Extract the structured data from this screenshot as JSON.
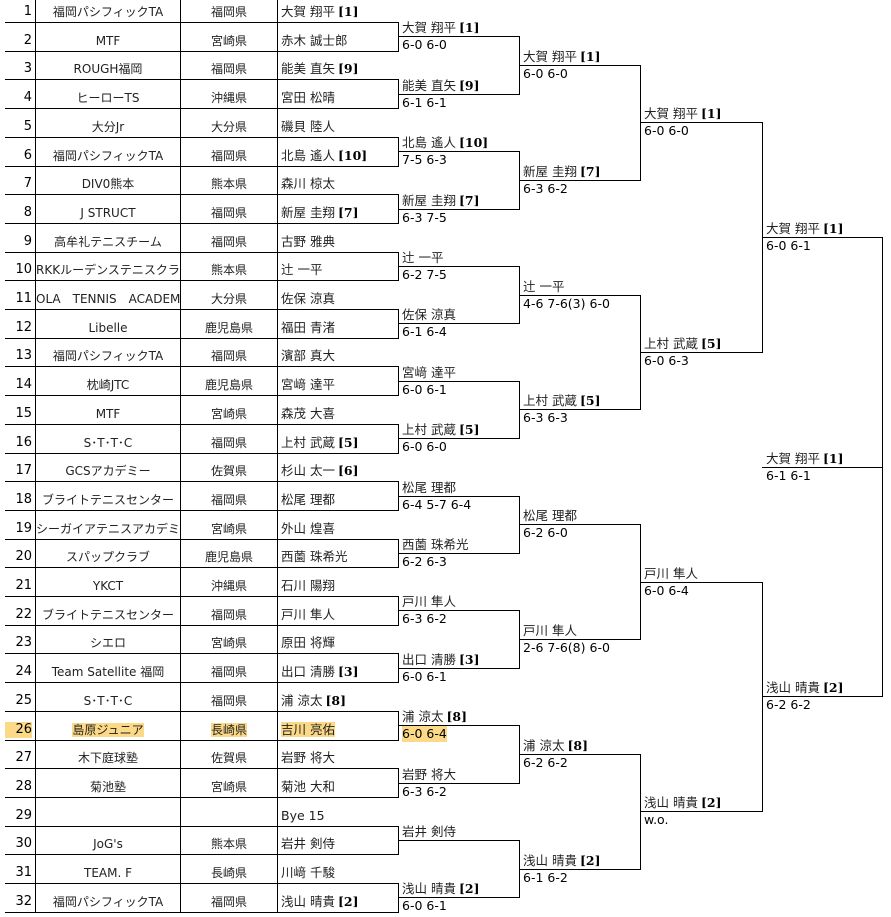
{
  "highlight_color": "#fcd987",
  "entries": [
    {
      "no": "1",
      "club": "福岡パシフィックTA",
      "pref": "福岡県",
      "name": "大賀 翔平",
      "seed": "[1]"
    },
    {
      "no": "2",
      "club": "MTF",
      "pref": "宮崎県",
      "name": "赤木 誠士郎",
      "seed": ""
    },
    {
      "no": "3",
      "club": "ROUGH福岡",
      "pref": "福岡県",
      "name": "能美 直矢",
      "seed": "[9]"
    },
    {
      "no": "4",
      "club": "ヒーローTS",
      "pref": "沖縄県",
      "name": "宮田 松晴",
      "seed": ""
    },
    {
      "no": "5",
      "club": "大分Jr",
      "pref": "大分県",
      "name": "磯貝 陸人",
      "seed": ""
    },
    {
      "no": "6",
      "club": "福岡パシフィックTA",
      "pref": "福岡県",
      "name": "北島 遙人",
      "seed": "[10]"
    },
    {
      "no": "7",
      "club": "DIV0熊本",
      "pref": "熊本県",
      "name": "森川 椋太",
      "seed": ""
    },
    {
      "no": "8",
      "club": "J STRUCT",
      "pref": "福岡県",
      "name": "新屋 圭翔",
      "seed": "[7]"
    },
    {
      "no": "9",
      "club": "高牟礼テニスチーム",
      "pref": "福岡県",
      "name": "古野 雅典",
      "seed": ""
    },
    {
      "no": "10",
      "club": "RKKルーデンステニスクラブ",
      "pref": "熊本県",
      "name": "辻 一平",
      "seed": ""
    },
    {
      "no": "11",
      "club": "OLA　TENNIS　ACADEM",
      "pref": "大分県",
      "name": "佐保 涼真",
      "seed": ""
    },
    {
      "no": "12",
      "club": "Libelle",
      "pref": "鹿児島県",
      "name": "福田 青渚",
      "seed": ""
    },
    {
      "no": "13",
      "club": "福岡パシフィックTA",
      "pref": "福岡県",
      "name": "濱部 真大",
      "seed": ""
    },
    {
      "no": "14",
      "club": "枕崎JTC",
      "pref": "鹿児島県",
      "name": "宮﨑 達平",
      "seed": ""
    },
    {
      "no": "15",
      "club": "MTF",
      "pref": "宮崎県",
      "name": "森茂 大喜",
      "seed": ""
    },
    {
      "no": "16",
      "club": "S･T･T･C",
      "pref": "福岡県",
      "name": "上村 武蔵",
      "seed": "[5]"
    },
    {
      "no": "17",
      "club": "GCSアカデミー",
      "pref": "佐賀県",
      "name": "杉山 太一",
      "seed": "[6]"
    },
    {
      "no": "18",
      "club": "ブライトテニスセンター",
      "pref": "福岡県",
      "name": "松尾 理都",
      "seed": ""
    },
    {
      "no": "19",
      "club": "シーガイアテニスアカデミー",
      "pref": "宮崎県",
      "name": "外山 煌喜",
      "seed": ""
    },
    {
      "no": "20",
      "club": "スパップクラブ",
      "pref": "鹿児島県",
      "name": "西薗 珠希光",
      "seed": ""
    },
    {
      "no": "21",
      "club": "YKCT",
      "pref": "沖縄県",
      "name": "石川 陽翔",
      "seed": ""
    },
    {
      "no": "22",
      "club": "ブライトテニスセンター",
      "pref": "福岡県",
      "name": "戸川 隼人",
      "seed": ""
    },
    {
      "no": "23",
      "club": "シエロ",
      "pref": "宮崎県",
      "name": "原田 将輝",
      "seed": ""
    },
    {
      "no": "24",
      "club": "Team Satellite 福岡",
      "pref": "福岡県",
      "name": "出口 清勝",
      "seed": "[3]"
    },
    {
      "no": "25",
      "club": "S･T･T･C",
      "pref": "福岡県",
      "name": "浦 涼太",
      "seed": "[8]"
    },
    {
      "no": "26",
      "club": "島原ジュニア",
      "pref": "長崎県",
      "name": "吉川 亮佑",
      "seed": "",
      "highlight": true
    },
    {
      "no": "27",
      "club": "木下庭球塾",
      "pref": "佐賀県",
      "name": "岩野 将大",
      "seed": ""
    },
    {
      "no": "28",
      "club": "菊池塾",
      "pref": "宮崎県",
      "name": "菊池 大和",
      "seed": ""
    },
    {
      "no": "29",
      "club": "",
      "pref": "",
      "name": "Bye 15",
      "seed": ""
    },
    {
      "no": "30",
      "club": "JoG's",
      "pref": "熊本県",
      "name": "岩井 剣侍",
      "seed": ""
    },
    {
      "no": "31",
      "club": "TEAM. F",
      "pref": "長崎県",
      "name": "川﨑 千駿",
      "seed": ""
    },
    {
      "no": "32",
      "club": "福岡パシフィックTA",
      "pref": "福岡県",
      "name": "浅山 晴貴",
      "seed": "[2]"
    }
  ],
  "rounds": [
    [
      {
        "name": "大賀 翔平",
        "seed": "[1]",
        "score": "6-0 6-0"
      },
      {
        "name": "能美 直矢",
        "seed": "[9]",
        "score": "6-1 6-1"
      },
      {
        "name": "北島 遙人",
        "seed": "[10]",
        "score": "7-5 6-3"
      },
      {
        "name": "新屋 圭翔",
        "seed": "[7]",
        "score": "6-3 7-5"
      },
      {
        "name": "辻 一平",
        "seed": "",
        "score": "6-2 7-5"
      },
      {
        "name": "佐保 涼真",
        "seed": "",
        "score": "6-1 6-4"
      },
      {
        "name": "宮﨑 達平",
        "seed": "",
        "score": "6-0 6-1"
      },
      {
        "name": "上村 武蔵",
        "seed": "[5]",
        "score": "6-0 6-0"
      },
      {
        "name": "松尾 理都",
        "seed": "",
        "score": "6-4 5-7 6-4"
      },
      {
        "name": "西薗 珠希光",
        "seed": "",
        "score": "6-2 6-3"
      },
      {
        "name": "戸川 隼人",
        "seed": "",
        "score": "6-3 6-2"
      },
      {
        "name": "出口 清勝",
        "seed": "[3]",
        "score": "6-0 6-1"
      },
      {
        "name": "浦 涼太",
        "seed": "[8]",
        "score": "6-0 6-4",
        "highlight": true
      },
      {
        "name": "岩野 将大",
        "seed": "",
        "score": "6-3 6-2"
      },
      {
        "name": "岩井 剣侍",
        "seed": "",
        "score": ""
      },
      {
        "name": "浅山 晴貴",
        "seed": "[2]",
        "score": "6-0 6-1"
      }
    ],
    [
      {
        "name": "大賀 翔平",
        "seed": "[1]",
        "score": "6-0 6-0"
      },
      {
        "name": "新屋 圭翔",
        "seed": "[7]",
        "score": "6-3 6-2"
      },
      {
        "name": "辻 一平",
        "seed": "",
        "score": "4-6 7-6(3) 6-0"
      },
      {
        "name": "上村 武蔵",
        "seed": "[5]",
        "score": "6-3 6-3"
      },
      {
        "name": "松尾 理都",
        "seed": "",
        "score": "6-2 6-0"
      },
      {
        "name": "戸川 隼人",
        "seed": "",
        "score": "2-6 7-6(8) 6-0"
      },
      {
        "name": "浦 涼太",
        "seed": "[8]",
        "score": "6-2 6-2"
      },
      {
        "name": "浅山 晴貴",
        "seed": "[2]",
        "score": "6-1 6-2"
      }
    ],
    [
      {
        "name": "大賀 翔平",
        "seed": "[1]",
        "score": "6-0 6-0"
      },
      {
        "name": "上村 武蔵",
        "seed": "[5]",
        "score": "6-0 6-3"
      },
      {
        "name": "戸川 隼人",
        "seed": "",
        "score": "6-0 6-4"
      },
      {
        "name": "浅山 晴貴",
        "seed": "[2]",
        "score": "w.o."
      }
    ],
    [
      {
        "name": "大賀 翔平",
        "seed": "[1]",
        "score": "6-0 6-1"
      },
      {
        "name": "浅山 晴貴",
        "seed": "[2]",
        "score": "6-2 6-2"
      }
    ],
    [
      {
        "name": "大賀 翔平",
        "seed": "[1]",
        "score": "6-1 6-1"
      }
    ]
  ]
}
